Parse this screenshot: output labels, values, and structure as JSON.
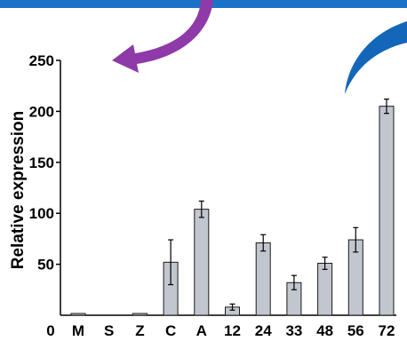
{
  "colors": {
    "top_band": "#1a73c6",
    "purple_arrow": "#8e3aa8",
    "blue_swoosh": "#1467b8",
    "bar_fill": "#c2c6ce",
    "bar_stroke": "#1a1a1a"
  },
  "chart_data": {
    "type": "bar",
    "title": "",
    "xlabel": "",
    "ylabel": "Relative expression",
    "ylim": [
      0,
      250
    ],
    "yticks": [
      50,
      100,
      150,
      200,
      250
    ],
    "zero_label": "0",
    "categories": [
      "M",
      "S",
      "Z",
      "C",
      "A",
      "12",
      "24",
      "33",
      "48",
      "56",
      "72"
    ],
    "values": [
      1,
      0,
      1,
      52,
      104,
      8,
      71,
      32,
      51,
      74,
      205
    ],
    "errors": [
      0.5,
      0,
      0.5,
      22,
      8,
      3,
      8,
      7,
      6,
      12,
      7
    ],
    "grid": false,
    "legend": "none"
  }
}
